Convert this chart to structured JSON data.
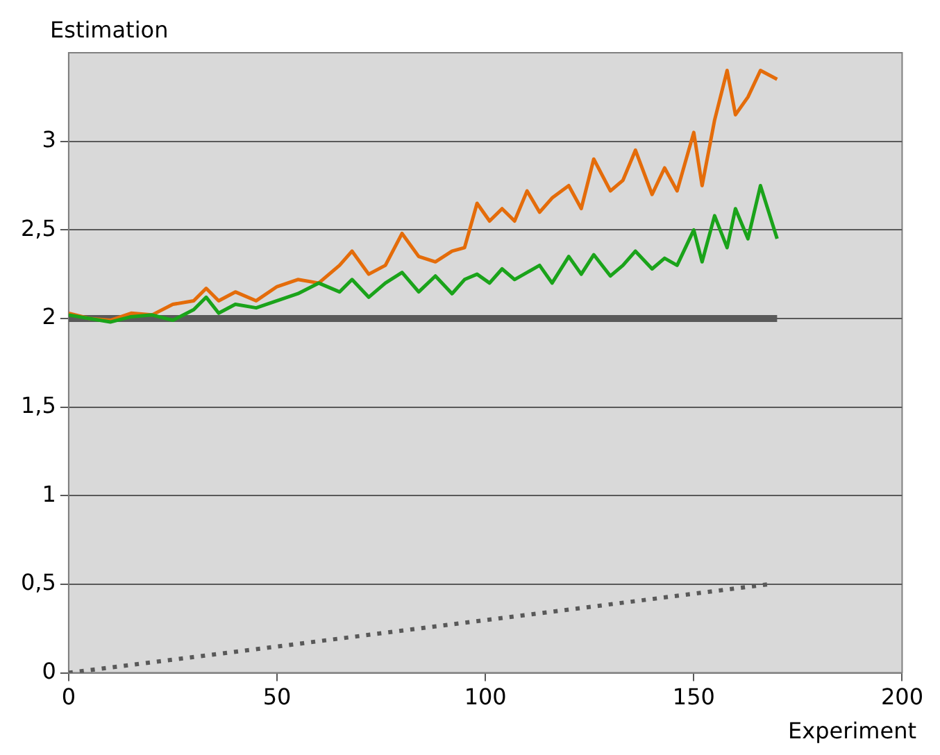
{
  "chart_data": {
    "type": "line",
    "xlabel": "Experiment",
    "ylabel": "Estimation",
    "xlim": [
      0,
      200
    ],
    "xticks": [
      0,
      50,
      100,
      150,
      200
    ],
    "ylim": [
      0,
      3.5
    ],
    "yticks": [
      {
        "value": 0,
        "label": "0"
      },
      {
        "value": 0.5,
        "label": "0,5"
      },
      {
        "value": 1,
        "label": "1"
      },
      {
        "value": 1.5,
        "label": "1,5"
      },
      {
        "value": 2,
        "label": "2"
      },
      {
        "value": 2.5,
        "label": "2,5"
      },
      {
        "value": 3,
        "label": "3"
      }
    ],
    "grid": "y",
    "marker": "none",
    "series": [
      {
        "color": "#595959",
        "line_style": "solid",
        "x": [
          0,
          170
        ],
        "values": [
          2,
          2
        ]
      },
      {
        "color": "#595959",
        "line_style": "dotted",
        "x": [
          0,
          168
        ],
        "values": [
          0,
          0.5
        ]
      },
      {
        "color": "#e46c0a",
        "line_style": "solid",
        "x": [
          0,
          5,
          10,
          15,
          20,
          25,
          30,
          33,
          36,
          40,
          45,
          50,
          55,
          60,
          65,
          68,
          72,
          76,
          80,
          84,
          88,
          92,
          95,
          98,
          101,
          104,
          107,
          110,
          113,
          116,
          120,
          123,
          126,
          130,
          133,
          136,
          140,
          143,
          146,
          150,
          152,
          155,
          158,
          160,
          163,
          166,
          170
        ],
        "values": [
          2.03,
          2.0,
          1.99,
          2.03,
          2.02,
          2.08,
          2.1,
          2.17,
          2.1,
          2.15,
          2.1,
          2.18,
          2.22,
          2.2,
          2.3,
          2.38,
          2.25,
          2.3,
          2.48,
          2.35,
          2.32,
          2.38,
          2.4,
          2.65,
          2.55,
          2.62,
          2.55,
          2.72,
          2.6,
          2.68,
          2.75,
          2.62,
          2.9,
          2.72,
          2.78,
          2.95,
          2.7,
          2.85,
          2.72,
          3.05,
          2.75,
          3.12,
          3.4,
          3.15,
          3.25,
          3.4,
          3.35
        ]
      },
      {
        "color": "#1aa31a",
        "line_style": "solid",
        "x": [
          0,
          5,
          10,
          15,
          20,
          25,
          30,
          33,
          36,
          40,
          45,
          50,
          55,
          60,
          65,
          68,
          72,
          76,
          80,
          84,
          88,
          92,
          95,
          98,
          101,
          104,
          107,
          110,
          113,
          116,
          120,
          123,
          126,
          130,
          133,
          136,
          140,
          143,
          146,
          150,
          152,
          155,
          158,
          160,
          163,
          166,
          170
        ],
        "values": [
          2.02,
          2.0,
          1.98,
          2.01,
          2.02,
          1.99,
          2.05,
          2.12,
          2.03,
          2.08,
          2.06,
          2.1,
          2.14,
          2.2,
          2.15,
          2.22,
          2.12,
          2.2,
          2.26,
          2.15,
          2.24,
          2.14,
          2.22,
          2.25,
          2.2,
          2.28,
          2.22,
          2.26,
          2.3,
          2.2,
          2.35,
          2.25,
          2.36,
          2.24,
          2.3,
          2.38,
          2.28,
          2.34,
          2.3,
          2.5,
          2.32,
          2.58,
          2.4,
          2.62,
          2.45,
          2.75,
          2.45
        ]
      }
    ]
  }
}
